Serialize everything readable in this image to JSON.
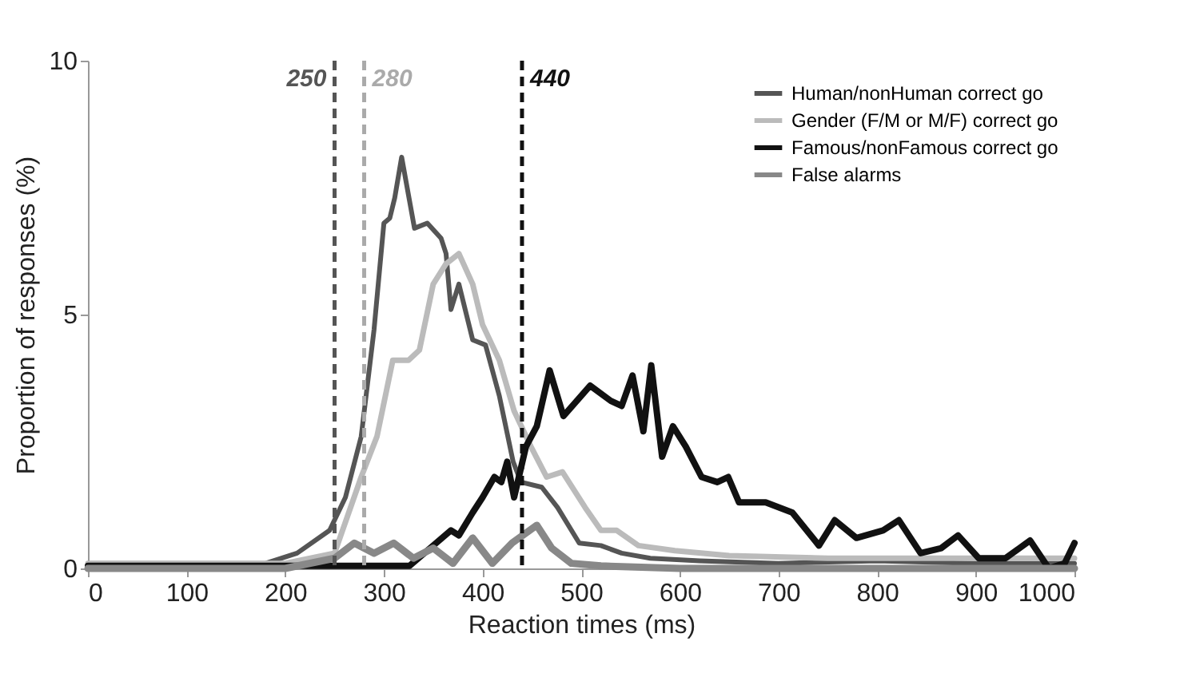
{
  "chart_data": {
    "type": "line",
    "xlabel": "Reaction times (ms)",
    "ylabel": "Proportion of responses (%)",
    "xlim": [
      0,
      1000
    ],
    "xticks": [
      0,
      100,
      200,
      300,
      400,
      500,
      600,
      700,
      800,
      900,
      1000
    ],
    "ylim": [
      0,
      10
    ],
    "yticks": [
      0,
      5,
      10
    ],
    "grid": false,
    "legend": "top right",
    "marker": "none",
    "line_style": "solid",
    "series": [
      {
        "name": "Human/nonHuman correct go",
        "color": "#555555",
        "x": [
          0,
          100,
          180,
          212,
          245,
          261,
          277,
          290,
          300,
          306,
          311,
          318,
          331,
          344,
          358,
          363,
          368,
          376,
          390,
          403,
          417,
          431,
          439,
          460,
          476,
          498,
          520,
          541,
          570,
          620,
          700,
          800,
          900,
          1000
        ],
        "values": [
          0.1,
          0.1,
          0.1,
          0.3,
          0.75,
          1.4,
          2.6,
          4.7,
          6.8,
          6.9,
          7.3,
          8.1,
          6.7,
          6.8,
          6.5,
          6.2,
          5.1,
          5.6,
          4.5,
          4.4,
          3.4,
          2.1,
          1.7,
          1.6,
          1.2,
          0.5,
          0.45,
          0.3,
          0.2,
          0.15,
          0.1,
          0.15,
          0.1,
          0.1
        ]
      },
      {
        "name": "Gender (F/M or M/F) correct go",
        "color": "#bbbbbb",
        "x": [
          0,
          100,
          200,
          250,
          277,
          293,
          309,
          325,
          336,
          350,
          363,
          376,
          390,
          400,
          417,
          432,
          449,
          465,
          481,
          504,
          520,
          536,
          558,
          595,
          650,
          750,
          850,
          950,
          1000
        ],
        "values": [
          0.1,
          0.1,
          0.1,
          0.3,
          1.8,
          2.6,
          4.1,
          4.1,
          4.3,
          5.6,
          6.0,
          6.2,
          5.6,
          4.8,
          4.1,
          3.1,
          2.4,
          1.8,
          1.9,
          1.2,
          0.75,
          0.75,
          0.45,
          0.35,
          0.25,
          0.2,
          0.2,
          0.2,
          0.2
        ]
      },
      {
        "name": "Famous/nonFamous correct go",
        "color": "#111111",
        "x": [
          0,
          100,
          200,
          300,
          326,
          347,
          368,
          376,
          390,
          400,
          412,
          419,
          425,
          432,
          444,
          455,
          468,
          482,
          509,
          530,
          541,
          552,
          563,
          571,
          582,
          593,
          606,
          622,
          638,
          649,
          660,
          687,
          714,
          741,
          757,
          779,
          806,
          822,
          844,
          865,
          882,
          903,
          930,
          955,
          974,
          990,
          1000
        ],
        "values": [
          0.05,
          0.05,
          0.05,
          0.05,
          0.05,
          0.4,
          0.75,
          0.65,
          1.1,
          1.4,
          1.8,
          1.7,
          2.1,
          1.4,
          2.4,
          2.8,
          3.9,
          3.0,
          3.6,
          3.3,
          3.2,
          3.8,
          2.7,
          4.0,
          2.2,
          2.8,
          2.4,
          1.8,
          1.7,
          1.8,
          1.3,
          1.3,
          1.1,
          0.45,
          0.95,
          0.6,
          0.75,
          0.95,
          0.3,
          0.4,
          0.65,
          0.2,
          0.2,
          0.55,
          0.0,
          0.1,
          0.5
        ]
      },
      {
        "name": "False alarms",
        "color": "#888888",
        "x": [
          0,
          200,
          250,
          270,
          290,
          310,
          330,
          350,
          370,
          390,
          410,
          430,
          455,
          470,
          490,
          520,
          600,
          700,
          800,
          900,
          1000
        ],
        "values": [
          0,
          0,
          0.2,
          0.5,
          0.3,
          0.5,
          0.2,
          0.4,
          0.1,
          0.6,
          0.1,
          0.5,
          0.85,
          0.4,
          0.1,
          0.05,
          0,
          0,
          0,
          0,
          0
        ]
      }
    ],
    "ref_lines": [
      {
        "axis": "x",
        "value": 250,
        "label": "250",
        "color": "#555555",
        "line_style": "dashed"
      },
      {
        "axis": "x",
        "value": 280,
        "label": "280",
        "color": "#aaaaaa",
        "line_style": "dashed"
      },
      {
        "axis": "x",
        "value": 440,
        "label": "440",
        "color": "#111111",
        "line_style": "dashed"
      }
    ]
  }
}
